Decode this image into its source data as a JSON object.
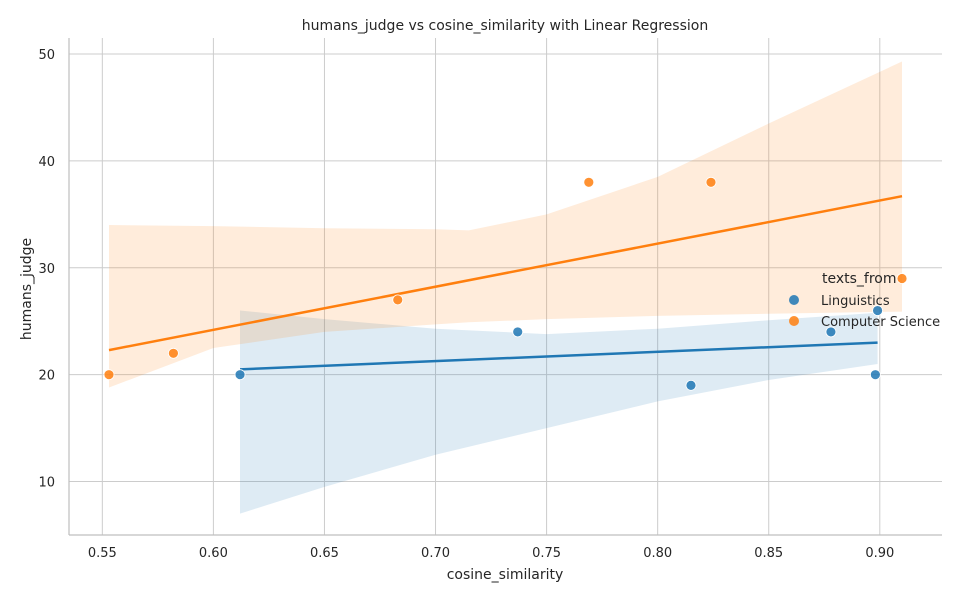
{
  "chart_data": {
    "type": "scatter",
    "title": "humans_judge vs cosine_similarity with Linear Regression",
    "xlabel": "cosine_similarity",
    "ylabel": "humans_judge",
    "xlim": [
      0.535,
      0.928
    ],
    "ylim": [
      5,
      51.5
    ],
    "xticks": [
      "0.55",
      "0.60",
      "0.65",
      "0.70",
      "0.75",
      "0.80",
      "0.85",
      "0.90"
    ],
    "yticks": [
      "10",
      "20",
      "30",
      "40",
      "50"
    ],
    "grid": true,
    "legend": {
      "title": "texts_from",
      "placement": "right"
    },
    "series": [
      {
        "name": "Linguistics",
        "color": "#1f77b4",
        "points": [
          {
            "x": 0.612,
            "y": 20
          },
          {
            "x": 0.737,
            "y": 24
          },
          {
            "x": 0.815,
            "y": 19
          },
          {
            "x": 0.878,
            "y": 24
          },
          {
            "x": 0.898,
            "y": 20
          },
          {
            "x": 0.899,
            "y": 26
          }
        ],
        "regression": {
          "x": [
            0.612,
            0.899
          ],
          "y": [
            20.5,
            23.0
          ]
        },
        "ci_band": {
          "x": [
            0.612,
            0.65,
            0.7,
            0.75,
            0.8,
            0.85,
            0.899
          ],
          "upper": [
            26.0,
            25.2,
            24.3,
            23.8,
            24.3,
            25.1,
            25.8
          ],
          "lower": [
            7.0,
            9.5,
            12.5,
            15.0,
            17.5,
            19.5,
            21.0
          ]
        }
      },
      {
        "name": "Computer Science",
        "color": "#ff7f0e",
        "points": [
          {
            "x": 0.553,
            "y": 20
          },
          {
            "x": 0.582,
            "y": 22
          },
          {
            "x": 0.683,
            "y": 27
          },
          {
            "x": 0.769,
            "y": 38
          },
          {
            "x": 0.824,
            "y": 38
          },
          {
            "x": 0.91,
            "y": 29
          }
        ],
        "regression": {
          "x": [
            0.553,
            0.91
          ],
          "y": [
            22.3,
            36.7
          ]
        },
        "ci_band": {
          "x": [
            0.553,
            0.6,
            0.65,
            0.7,
            0.715,
            0.75,
            0.8,
            0.85,
            0.91
          ],
          "upper": [
            34.0,
            33.9,
            33.7,
            33.6,
            33.5,
            35.0,
            38.5,
            43.5,
            49.3
          ],
          "lower": [
            18.8,
            22.5,
            24.0,
            24.7,
            24.9,
            25.2,
            25.5,
            25.7,
            25.9
          ]
        }
      }
    ]
  }
}
